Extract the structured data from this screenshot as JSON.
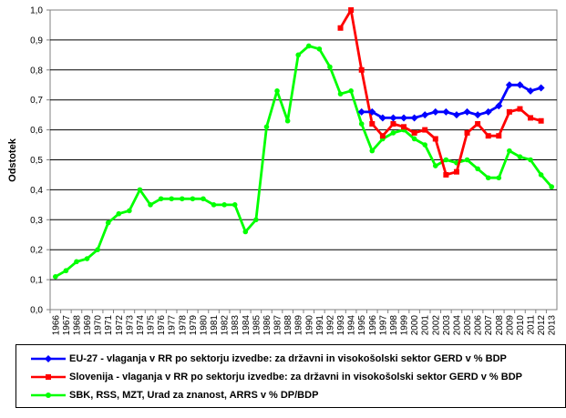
{
  "chart_data": {
    "type": "line",
    "ylabel": "Odstotek",
    "xlabel": "",
    "ylim": [
      0,
      1.0
    ],
    "ytick_labels": [
      "0,0",
      "0,1",
      "0,2",
      "0,3",
      "0,4",
      "0,5",
      "0,6",
      "0,7",
      "0,8",
      "0,9",
      "1,0"
    ],
    "x": [
      1966,
      1967,
      1968,
      1969,
      1970,
      1971,
      1972,
      1973,
      1974,
      1975,
      1976,
      1977,
      1978,
      1979,
      1980,
      1981,
      1982,
      1983,
      1984,
      1985,
      1986,
      1987,
      1988,
      1989,
      1990,
      1991,
      1992,
      1993,
      1994,
      1995,
      1996,
      1997,
      1998,
      1999,
      2000,
      2001,
      2002,
      2003,
      2004,
      2005,
      2006,
      2007,
      2008,
      2009,
      2010,
      2011,
      2012,
      2013
    ],
    "grid": true,
    "legend_position": "bottom",
    "series": [
      {
        "name": "EU-27 - vlaganja v RR po sektorju izvedbe: za državni in visokošolski sektor GERD v % BDP",
        "color": "#0000ff",
        "marker": "diamond",
        "values": [
          null,
          null,
          null,
          null,
          null,
          null,
          null,
          null,
          null,
          null,
          null,
          null,
          null,
          null,
          null,
          null,
          null,
          null,
          null,
          null,
          null,
          null,
          null,
          null,
          null,
          null,
          null,
          null,
          null,
          0.66,
          0.66,
          0.64,
          0.64,
          0.64,
          0.64,
          0.65,
          0.66,
          0.66,
          0.65,
          0.66,
          0.65,
          0.66,
          0.68,
          0.75,
          0.75,
          0.73,
          0.74,
          null
        ]
      },
      {
        "name": "Slovenija - vlaganja v RR po sektorju izvedbe: za državni in visokošolski sektor GERD v % BDP",
        "color": "#ff0000",
        "marker": "square",
        "values": [
          null,
          null,
          null,
          null,
          null,
          null,
          null,
          null,
          null,
          null,
          null,
          null,
          null,
          null,
          null,
          null,
          null,
          null,
          null,
          null,
          null,
          null,
          null,
          null,
          null,
          null,
          null,
          0.94,
          1.0,
          0.8,
          0.62,
          0.58,
          0.62,
          0.61,
          0.59,
          0.6,
          0.57,
          0.45,
          0.46,
          0.59,
          0.62,
          0.58,
          0.58,
          0.66,
          0.67,
          0.64,
          0.63,
          null
        ]
      },
      {
        "name": "SBK, RSS, MZT, Urad za znanost, ARRS v % DP/BDP",
        "color": "#00ff00",
        "marker": "circle",
        "values": [
          0.11,
          0.13,
          0.16,
          0.17,
          0.2,
          0.29,
          0.32,
          0.33,
          0.4,
          0.35,
          0.37,
          0.37,
          0.37,
          0.37,
          0.37,
          0.35,
          0.35,
          0.35,
          0.26,
          0.3,
          0.61,
          0.73,
          0.63,
          0.85,
          0.88,
          0.87,
          0.81,
          0.72,
          0.73,
          0.62,
          0.53,
          0.57,
          0.59,
          0.6,
          0.57,
          0.55,
          0.48,
          0.5,
          0.49,
          0.5,
          0.47,
          0.44,
          0.44,
          0.53,
          0.51,
          0.5,
          0.45,
          0.41
        ]
      }
    ]
  }
}
